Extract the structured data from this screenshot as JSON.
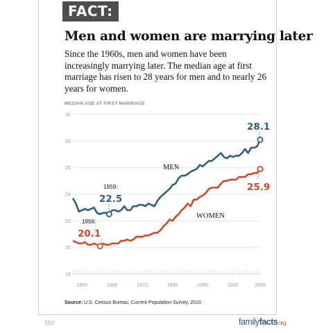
{
  "header": {
    "badge": "FACT:",
    "title": "Men and women are marrying later",
    "description": "Since the 1960s, men and women have been increasingly marrying later. The median age at first marriage has risen to 28 years for men and to nearly 26 years for women."
  },
  "colors": {
    "men": "#2d6080",
    "women": "#d9452b",
    "grid": "#e4e4e4",
    "axis": "#cfcfcf"
  },
  "chart_data": {
    "type": "line",
    "ylabel": "MEDIAN AGE AT FIRST MARRIAGE",
    "ylim": [
      18,
      30
    ],
    "xlim": [
      1947,
      2009
    ],
    "yticks": [
      "30",
      "28",
      "26",
      "24",
      "22",
      "20",
      "18"
    ],
    "xticks": [
      "1950",
      "1960",
      "1970",
      "1980",
      "1990",
      "2000",
      "2009"
    ],
    "grid": true,
    "series": [
      {
        "name": "MEN",
        "x": [
          1947,
          1948,
          1949,
          1950,
          1951,
          1952,
          1953,
          1954,
          1955,
          1956,
          1957,
          1958,
          1959,
          1960,
          1961,
          1962,
          1963,
          1964,
          1965,
          1966,
          1967,
          1968,
          1969,
          1970,
          1971,
          1972,
          1973,
          1974,
          1975,
          1976,
          1977,
          1978,
          1979,
          1980,
          1981,
          1982,
          1983,
          1984,
          1985,
          1986,
          1987,
          1988,
          1989,
          1990,
          1991,
          1992,
          1993,
          1994,
          1995,
          1996,
          1997,
          1998,
          1999,
          2000,
          2001,
          2002,
          2003,
          2004,
          2005,
          2006,
          2007,
          2008,
          2009
        ],
        "values": [
          23.7,
          23.3,
          22.7,
          22.8,
          22.9,
          22.8,
          22.9,
          23.0,
          22.6,
          22.5,
          22.6,
          22.6,
          22.5,
          22.8,
          22.8,
          22.7,
          22.8,
          23.1,
          22.8,
          22.8,
          23.1,
          23.1,
          23.2,
          23.2,
          23.1,
          23.3,
          23.2,
          23.1,
          23.5,
          23.8,
          24.0,
          24.2,
          24.4,
          24.7,
          24.8,
          25.2,
          25.4,
          25.4,
          25.5,
          25.7,
          25.8,
          25.9,
          26.2,
          26.1,
          26.3,
          26.5,
          26.5,
          26.7,
          26.9,
          27.1,
          26.8,
          26.7,
          26.9,
          26.8,
          26.9,
          26.9,
          27.1,
          27.4,
          27.1,
          27.5,
          27.5,
          27.6,
          28.1
        ]
      },
      {
        "name": "WOMEN",
        "x": [
          1947,
          1948,
          1949,
          1950,
          1951,
          1952,
          1953,
          1954,
          1955,
          1956,
          1957,
          1958,
          1959,
          1960,
          1961,
          1962,
          1963,
          1964,
          1965,
          1966,
          1967,
          1968,
          1969,
          1970,
          1971,
          1972,
          1973,
          1974,
          1975,
          1976,
          1977,
          1978,
          1979,
          1980,
          1981,
          1982,
          1983,
          1984,
          1985,
          1986,
          1987,
          1988,
          1989,
          1990,
          1991,
          1992,
          1993,
          1994,
          1995,
          1996,
          1997,
          1998,
          1999,
          2000,
          2001,
          2002,
          2003,
          2004,
          2005,
          2006,
          2007,
          2008,
          2009
        ],
        "values": [
          20.5,
          20.4,
          20.3,
          20.3,
          20.4,
          20.2,
          20.2,
          20.3,
          20.2,
          20.1,
          20.3,
          20.2,
          20.2,
          20.3,
          20.3,
          20.3,
          20.5,
          20.5,
          20.6,
          20.5,
          20.6,
          20.8,
          20.8,
          20.8,
          20.9,
          20.9,
          21.0,
          21.1,
          21.1,
          21.3,
          21.6,
          21.8,
          22.1,
          22.0,
          22.3,
          22.5,
          22.8,
          23.0,
          23.3,
          23.1,
          23.6,
          23.6,
          23.8,
          23.9,
          24.1,
          24.4,
          24.5,
          24.5,
          24.5,
          24.8,
          25.0,
          25.0,
          25.1,
          25.1,
          25.1,
          25.3,
          25.3,
          25.3,
          25.5,
          25.5,
          25.6,
          25.6,
          25.9
        ]
      }
    ],
    "annotations": [
      {
        "series": "MEN",
        "x": 1959,
        "y": 22.5,
        "year_label": "1959:",
        "value_label": "22.5"
      },
      {
        "series": "WOMEN",
        "x": 1956,
        "y": 20.1,
        "year_label": "1956:",
        "value_label": "20.1"
      },
      {
        "series": "MEN",
        "x": 2009,
        "y": 28.1,
        "value_label": "28.1"
      },
      {
        "series": "WOMEN",
        "x": 2009,
        "y": 25.9,
        "value_label": "25.9"
      }
    ]
  },
  "source": {
    "label": "Source:",
    "text": "U.S. Census Bureau, Current Population Survey, 2010."
  },
  "footer": {
    "page_number": "102",
    "logo_part1": "family",
    "logo_part2": "facts",
    "logo_suffix": ".org"
  }
}
